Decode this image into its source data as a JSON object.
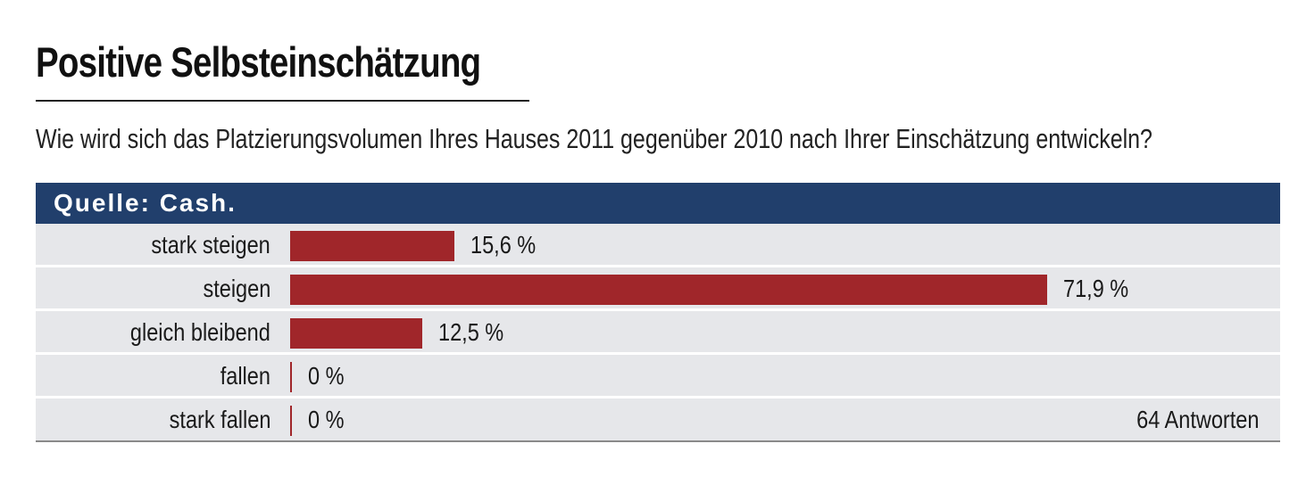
{
  "title": "Positive Selbsteinschätzung",
  "subtitle": "Wie wird sich das Platzierungsvolumen Ihres Hauses 2011 gegenüber 2010 nach Ihrer Einschätzung entwickeln?",
  "source": "Quelle: Cash.",
  "footnote": "64 Antworten",
  "colors": {
    "header": "#213f6c",
    "bar": "#a0262a",
    "row_background": "#e6e7ea"
  },
  "chart_data": {
    "type": "bar",
    "orientation": "horizontal",
    "categories": [
      "stark steigen",
      "steigen",
      "gleich bleibend",
      "fallen",
      "stark fallen"
    ],
    "values": [
      15.6,
      71.9,
      12.5,
      0,
      0
    ],
    "value_labels": [
      "15,6 %",
      "71,9 %",
      "12,5 %",
      "0 %",
      "0 %"
    ],
    "unit": "%",
    "title": "Positive Selbsteinschätzung",
    "subtitle": "Wie wird sich das Platzierungsvolumen Ihres Hauses 2011 gegenüber 2010 nach Ihrer Einschätzung entwickeln?",
    "xlabel": "",
    "ylabel": "",
    "xlim": [
      0,
      100
    ],
    "grid": false,
    "legend": "none"
  }
}
